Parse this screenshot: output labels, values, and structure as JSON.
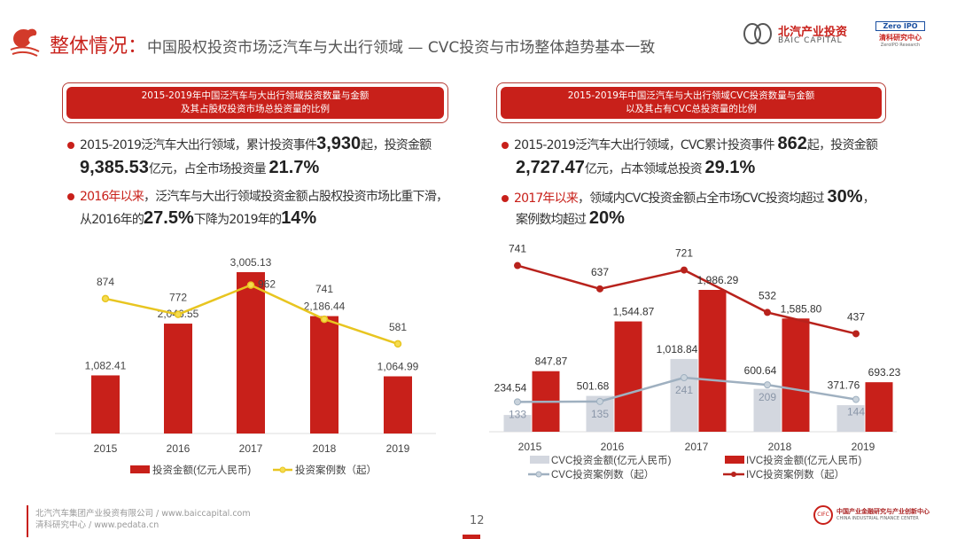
{
  "header": {
    "title_main": "整体情况：",
    "title_sub": "中国股权投资市场泛汽车与大出行领域 — CVC投资与市场整体趋势基本一致",
    "brand1_cn": "北汽产业投资",
    "brand1_en": "BAIC CAPITAL",
    "brand2_top": "Zero IPO",
    "brand2_cn": "清科研究中心",
    "brand2_en": "ZeroIPO Research"
  },
  "left": {
    "box_line1": "2015-2019年中国泛汽车与大出行领域投资数量与金额",
    "box_line2": "及其占股权投资市场总投资量的比例",
    "b1a": "2015-2019泛汽车大出行领域，累计投资事件",
    "b1n1": "3,930",
    "b1b": "起，投资金额",
    "b1n2": "9,385.53",
    "b1c": "亿元，占全市场投资量 ",
    "b1n3": "21.7%",
    "b2a": "2016年以来",
    "b2b": "，泛汽车与大出行领域投资金额占股权投资市场比重下滑，",
    "b2c": "从2016年的",
    "b2n1": "27.5%",
    "b2d": "下降为2019年的",
    "b2n2": "14%"
  },
  "right": {
    "box_line1": "2015-2019年中国泛汽车与大出行领域CVC投资数量与金额",
    "box_line2": "以及其占有CVC总投资量的比例",
    "b1a": "2015-2019泛汽车大出行领域，CVC累计投资事件 ",
    "b1n1": "862",
    "b1b": "起，投资金额",
    "b1n2": "2,727.47",
    "b1c": "亿元，占本领域总投资 ",
    "b1n3": "29.1%",
    "b2a": "2017年以来",
    "b2b": "，领域内CVC投资金额占全市场CVC投资均超过 ",
    "b2n1": "30%",
    "b2c": "，",
    "b2d": "案例数均超过 ",
    "b2n2": "20%"
  },
  "chart_data": [
    {
      "type": "bar+line",
      "categories": [
        "2015",
        "2016",
        "2017",
        "2018",
        "2019"
      ],
      "series": [
        {
          "name": "投资金额(亿元人民币)",
          "kind": "bar",
          "color": "#c8201a",
          "values": [
            1082.41,
            2046.55,
            3005.13,
            2186.44,
            1064.99
          ],
          "labels": [
            "1,082.41",
            "2,046.55",
            "3,005.13",
            "2,186.44",
            "1,064.99"
          ]
        },
        {
          "name": "投资案例数（起）",
          "kind": "line",
          "color": "#e8c520",
          "values": [
            874,
            772,
            962,
            741,
            581
          ],
          "labels": [
            "874",
            "772",
            "962",
            "741",
            "581"
          ]
        }
      ]
    },
    {
      "type": "bar+line",
      "categories": [
        "2015",
        "2016",
        "2017",
        "2018",
        "2019"
      ],
      "series": [
        {
          "name": "CVC投资金额(亿元人民币)",
          "kind": "bar",
          "color": "#d3d7df",
          "values": [
            234.54,
            501.68,
            1018.84,
            600.64,
            371.76
          ],
          "labels": [
            "234.54",
            "501.68",
            "1,018.84",
            "600.64",
            "371.76"
          ]
        },
        {
          "name": "IVC投资金额(亿元人民币)",
          "kind": "bar",
          "color": "#c8201a",
          "values": [
            847.87,
            1544.87,
            1986.29,
            1585.8,
            693.23
          ],
          "labels": [
            "847.87",
            "1,544.87",
            "1,986.29",
            "1,585.80",
            "693.23"
          ]
        },
        {
          "name": "CVC投资案例数（起）",
          "kind": "line",
          "color": "#9fb0c0",
          "values": [
            133,
            135,
            241,
            209,
            144
          ],
          "labels": [
            "133",
            "135",
            "241",
            "209",
            "144"
          ]
        },
        {
          "name": "IVC投资案例数（起）",
          "kind": "line",
          "color": "#b8221c",
          "values": [
            741,
            637,
            721,
            532,
            437
          ],
          "labels": [
            "741",
            "637",
            "721",
            "532",
            "437"
          ]
        }
      ]
    }
  ],
  "footer": {
    "line1": "北汽汽车集团产业投资有限公司 / www.baiccapital.com",
    "line2": "清科研究中心 / www.pedata.cn",
    "page": "12",
    "org_cn": "中国产业金融研究与产业创新中心",
    "org_en": "CHINA INDUSTRIAL FINANCE CENTER"
  }
}
